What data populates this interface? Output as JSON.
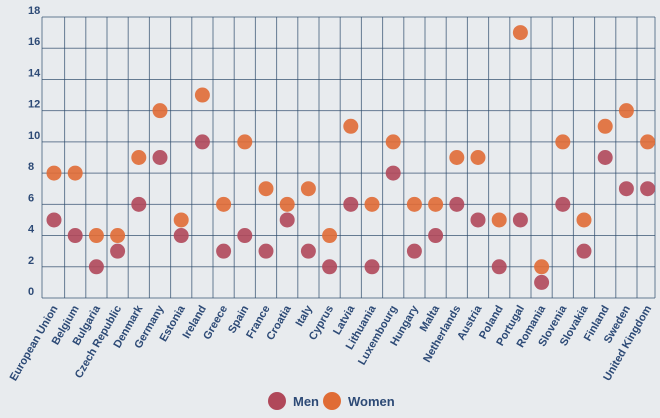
{
  "chart_data": {
    "type": "scatter",
    "title": "",
    "xlabel": "",
    "ylabel": "",
    "ylim": [
      0,
      18
    ],
    "yticks": [
      0,
      2,
      4,
      6,
      8,
      10,
      12,
      14,
      16,
      18
    ],
    "grid": true,
    "categories": [
      "European Union",
      "Belgium",
      "Bulgaria",
      "Czech Republic",
      "Denmark",
      "Germany",
      "Estonia",
      "Ireland",
      "Greece",
      "Spain",
      "France",
      "Croatia",
      "Italy",
      "Cyprus",
      "Latvia",
      "Lithuania",
      "Luxembourg",
      "Hungary",
      "Malta",
      "Netherlands",
      "Austria",
      "Poland",
      "Portugal",
      "Romania",
      "Slovenia",
      "Slovakia",
      "Finland",
      "Sweden",
      "United Kingdom"
    ],
    "series": [
      {
        "name": "Men",
        "color": "#b0485a",
        "values": [
          5,
          4,
          2,
          3,
          6,
          9,
          4,
          10,
          3,
          4,
          3,
          5,
          3,
          2,
          6,
          2,
          8,
          3,
          4,
          6,
          5,
          2,
          5,
          1,
          6,
          3,
          9,
          7,
          7
        ]
      },
      {
        "name": "Women",
        "color": "#e06c35",
        "values": [
          8,
          8,
          4,
          4,
          9,
          12,
          5,
          13,
          6,
          10,
          7,
          6,
          7,
          4,
          11,
          6,
          10,
          6,
          6,
          9,
          9,
          5,
          17,
          2,
          10,
          5,
          11,
          12,
          10
        ]
      }
    ],
    "legend": {
      "position": "bottom-center",
      "items": [
        "Men",
        "Women"
      ]
    }
  },
  "colors": {
    "background": "#e8ebee",
    "grid": "#2e4b6b",
    "label": "#2d4a76",
    "men": "#b0485a",
    "women": "#e06c35"
  }
}
